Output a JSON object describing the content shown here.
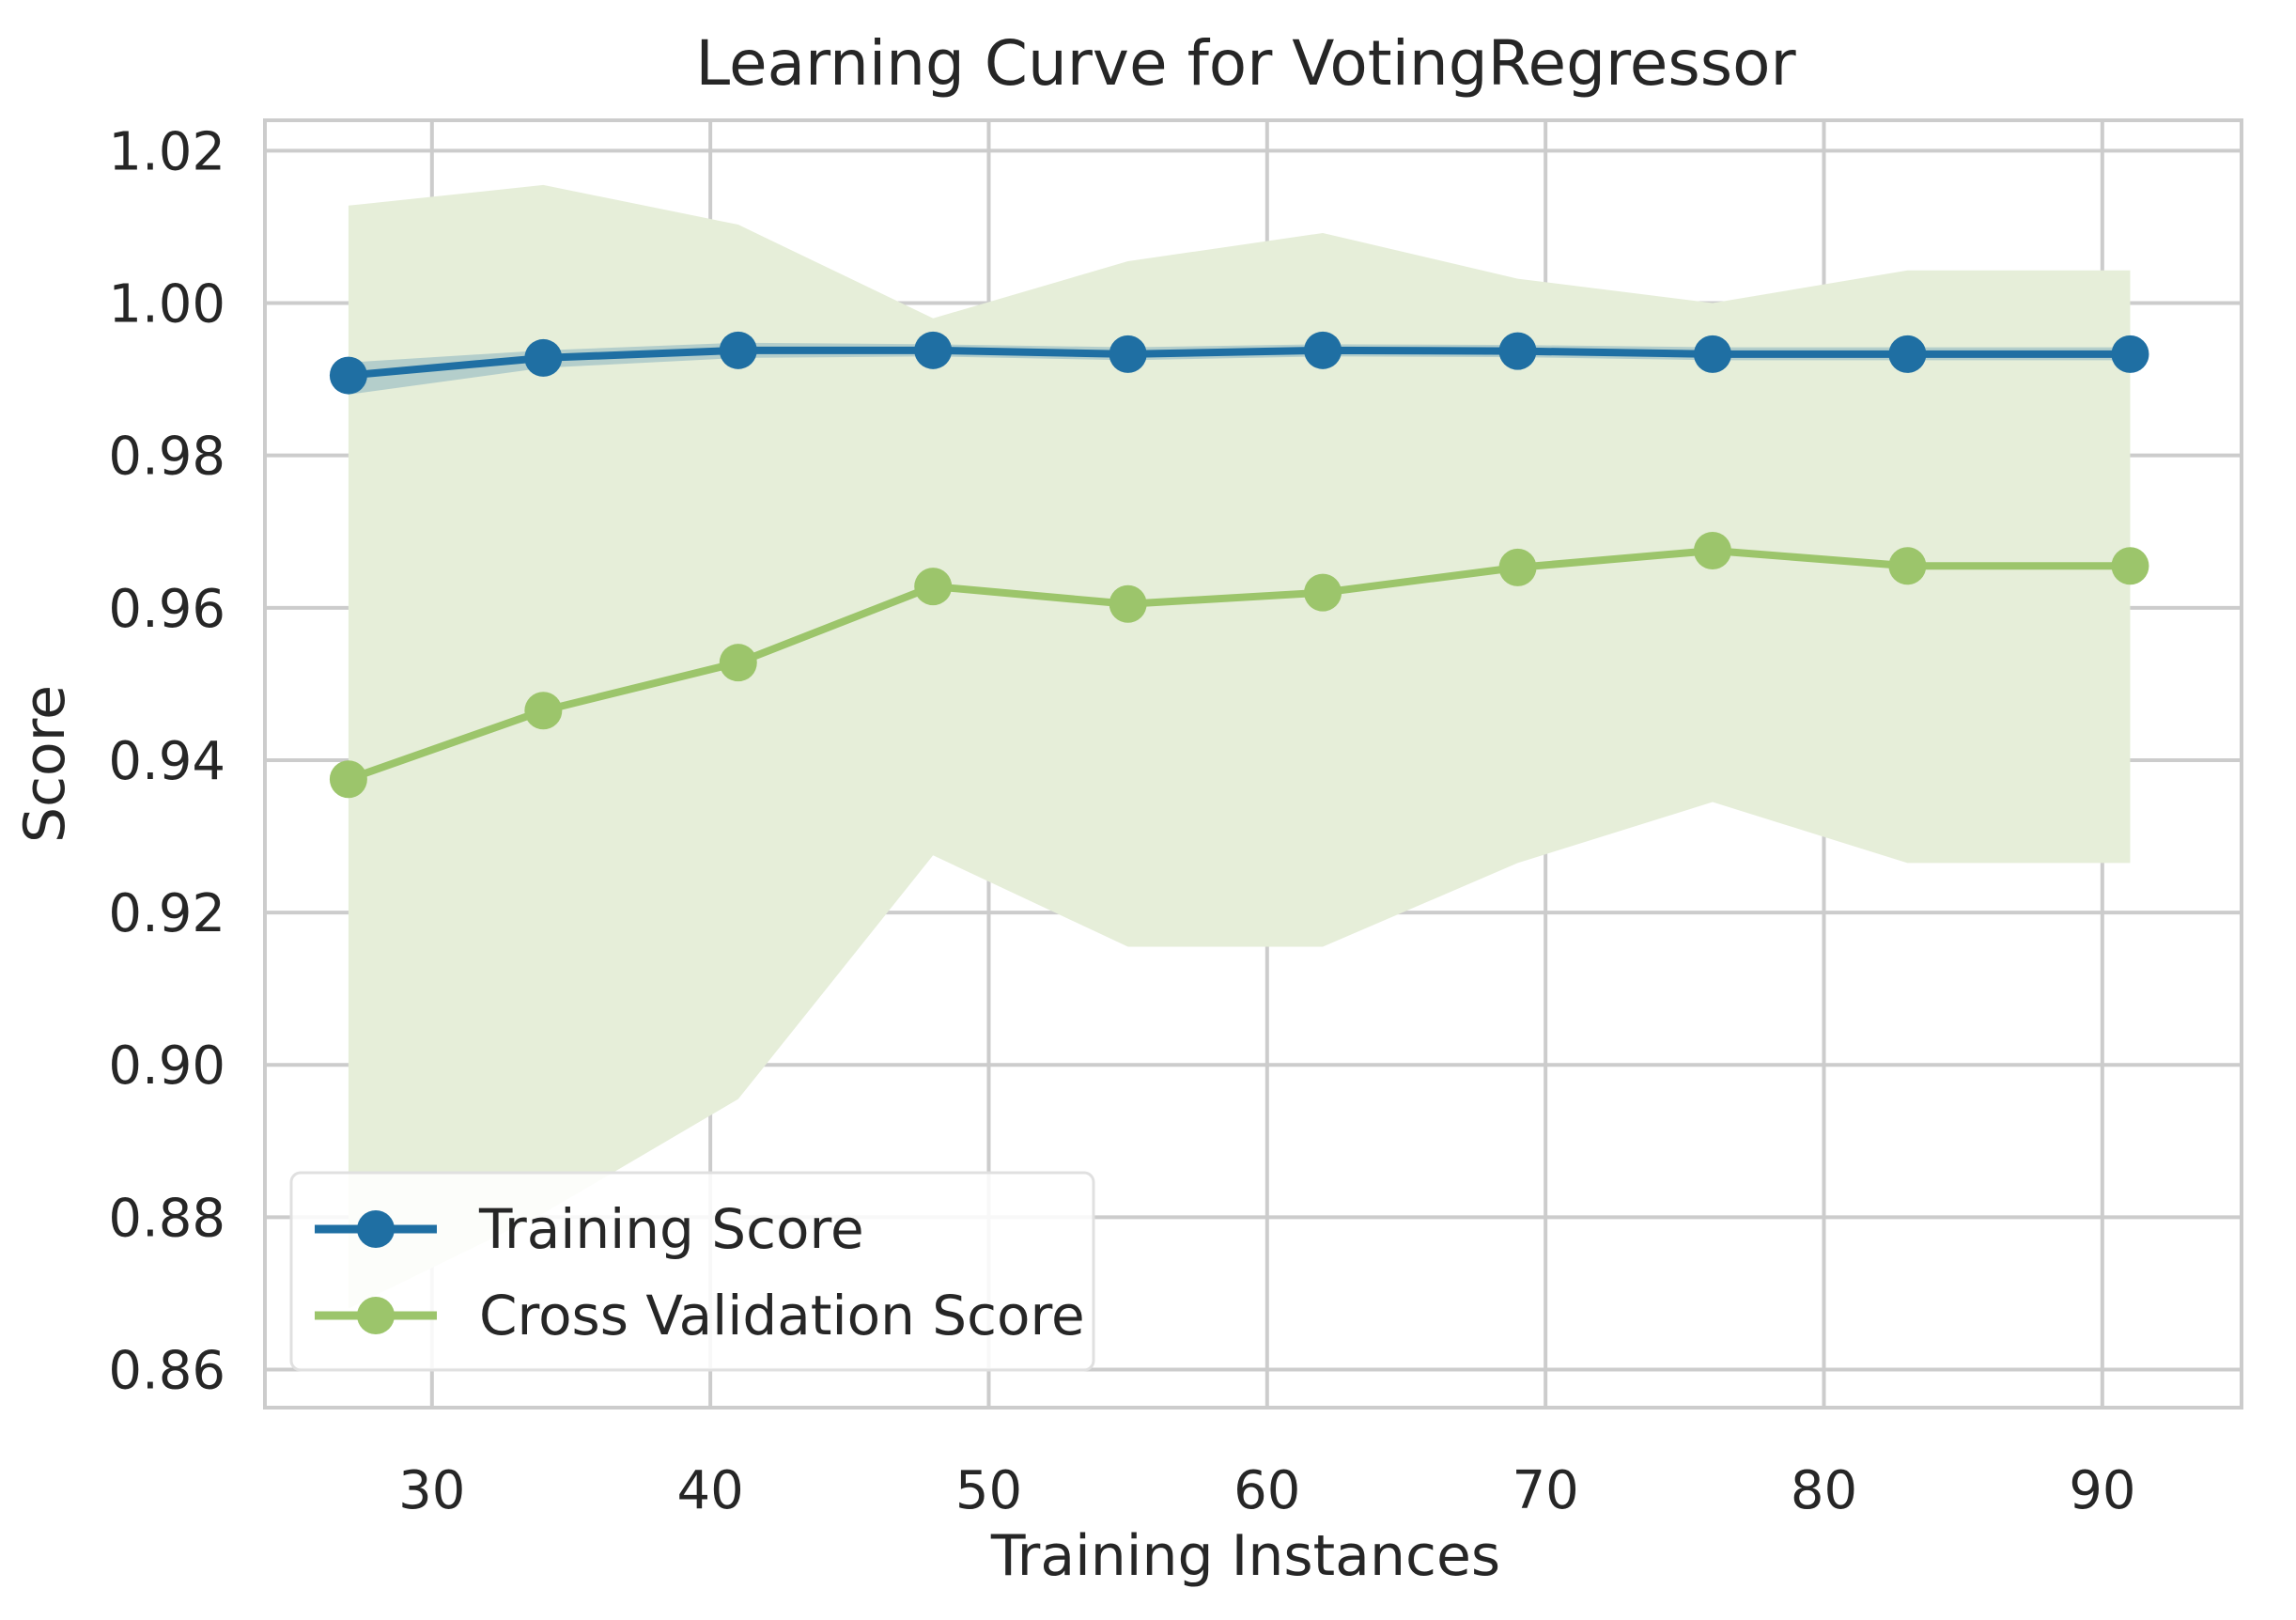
{
  "chart_data": {
    "type": "line",
    "title": "Learning Curve for VotingRegressor",
    "xlabel": "Training Instances",
    "ylabel": "Score",
    "xlim": [
      24,
      95
    ],
    "ylim": [
      0.855,
      1.024
    ],
    "x_ticks": [
      30,
      40,
      50,
      60,
      70,
      80,
      90
    ],
    "x_tick_labels": [
      "30",
      "40",
      "50",
      "60",
      "70",
      "80",
      "90"
    ],
    "y_ticks": [
      0.86,
      0.88,
      0.9,
      0.92,
      0.94,
      0.96,
      0.98,
      1.0,
      1.02
    ],
    "y_tick_labels": [
      "0.86",
      "0.88",
      "0.90",
      "0.92",
      "0.94",
      "0.96",
      "0.98",
      "1.00",
      "1.02"
    ],
    "grid": true,
    "legend_position": "bottom-left",
    "x": [
      27,
      34,
      41,
      48,
      55,
      62,
      69,
      76,
      83,
      91
    ],
    "series": [
      {
        "name": "Training Score",
        "color": "#1f6fa3",
        "band_color": "#1f6fa3",
        "values": [
          0.9905,
          0.9928,
          0.9938,
          0.9938,
          0.9933,
          0.9938,
          0.9937,
          0.9933,
          0.9933,
          0.9933
        ],
        "upper": [
          0.9922,
          0.9938,
          0.9948,
          0.9946,
          0.9942,
          0.9946,
          0.9945,
          0.9942,
          0.9942,
          0.9942
        ],
        "lower": [
          0.988,
          0.9915,
          0.9928,
          0.993,
          0.9925,
          0.993,
          0.9929,
          0.9925,
          0.9925,
          0.9925
        ]
      },
      {
        "name": "Cross Validation Score",
        "color": "#9cc56b",
        "band_color": "#e6eed9",
        "values": [
          0.9375,
          0.9465,
          0.9528,
          0.9628,
          0.9605,
          0.962,
          0.9653,
          0.9675,
          0.9655,
          0.9655
        ],
        "upper": [
          1.0128,
          1.0155,
          1.0103,
          0.998,
          1.0055,
          1.0092,
          1.0032,
          1.0,
          1.0043,
          1.0043
        ],
        "lower": [
          0.868,
          0.8805,
          0.8955,
          0.9275,
          0.9155,
          0.9155,
          0.9265,
          0.9345,
          0.9265,
          0.9265
        ]
      }
    ]
  }
}
